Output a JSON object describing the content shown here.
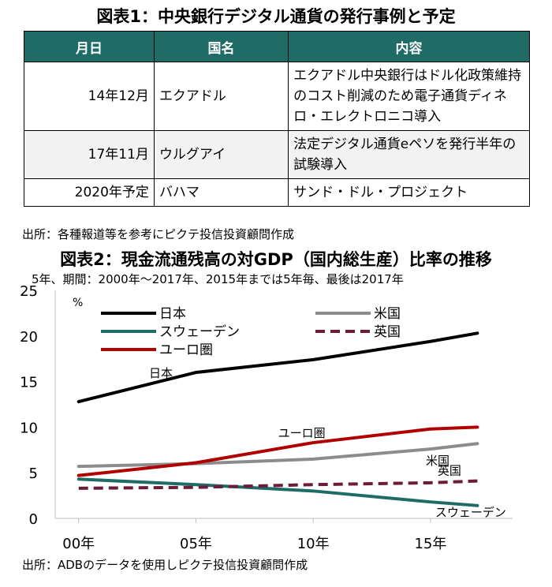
{
  "table_title": "図表1：中央銀行デジタル通貨の発行事例と予定",
  "table": {
    "headers": [
      "月日",
      "国名",
      "内容"
    ],
    "rows": [
      {
        "date": "14年12月",
        "country": "エクアドル",
        "content": "エクアドル中央銀行はドル化政策維持のコスト削減のため電子通貨ディネロ・エレクトロニコ導入"
      },
      {
        "date": "17年11月",
        "country": "ウルグアイ",
        "content": "法定デジタル通貨eペソを発行半年の試験導入"
      },
      {
        "date": "2020年予定",
        "country": "バハマ",
        "content": "サンド・ドル・プロジェクト"
      }
    ]
  },
  "table_source": "出所：各種報道等を参考にピクテ投信投資顧問作成",
  "chart_title": "図表2：現金流通残高の対GDP（国内総生産）比率の推移",
  "chart_subtitle": "5年、期間：2000年～2017年、2015年までは5年毎、最後は2017年",
  "chart_source": "出所：ADBのデータを使用しピクテ投信投資顧問作成",
  "chart_data": {
    "type": "line",
    "unit": "%",
    "x": [
      2000,
      2005,
      2010,
      2015,
      2017
    ],
    "x_tick_labels": [
      "00年",
      "05年",
      "10年",
      "15年"
    ],
    "x_ticks": [
      2000,
      2005,
      2010,
      2015
    ],
    "ylim": [
      0,
      25
    ],
    "y_ticks": [
      0,
      5,
      10,
      15,
      20,
      25
    ],
    "legend_position": "top",
    "series": [
      {
        "name": "日本",
        "color": "#000000",
        "dash": false,
        "values": [
          12.8,
          16.0,
          17.4,
          19.4,
          20.3
        ],
        "label": "日本",
        "label_at": [
          2003,
          15.5
        ]
      },
      {
        "name": "米国",
        "color": "#8c8c8c",
        "dash": false,
        "values": [
          5.7,
          6.0,
          6.5,
          7.6,
          8.2
        ],
        "label": "米国",
        "label_at": [
          2014.8,
          5.9
        ]
      },
      {
        "name": "スウェーデン",
        "color": "#1f6b66",
        "dash": false,
        "values": [
          4.3,
          3.7,
          3.0,
          1.8,
          1.4
        ],
        "label": "スウェーデン",
        "label_at": [
          2015.2,
          0.2
        ]
      },
      {
        "name": "英国",
        "color": "#6d1b3b",
        "dash": true,
        "values": [
          3.3,
          3.4,
          3.7,
          3.9,
          4.1
        ],
        "label": "英国",
        "label_at": [
          2015.3,
          4.8
        ]
      },
      {
        "name": "ユーロ圏",
        "color": "#b00000",
        "dash": false,
        "values": [
          4.7,
          6.1,
          8.3,
          9.8,
          10.0
        ],
        "label": "ユーロ圏",
        "label_at": [
          2008.5,
          8.9
        ]
      }
    ]
  }
}
